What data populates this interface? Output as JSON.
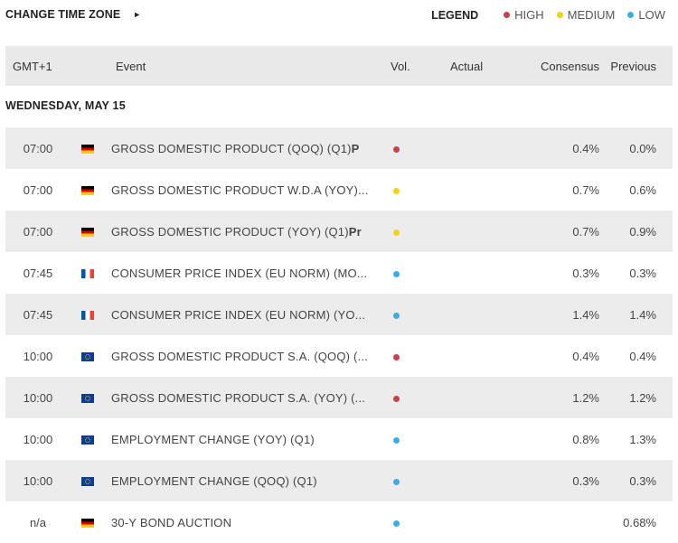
{
  "topbar": {
    "change_tz_label": "CHANGE TIME ZONE",
    "arrow": "►",
    "legend_title": "LEGEND",
    "legend": [
      {
        "label": "HIGH",
        "color": "#c9404c"
      },
      {
        "label": "MEDIUM",
        "color": "#f2d21b"
      },
      {
        "label": "LOW",
        "color": "#3aaee3"
      }
    ]
  },
  "table": {
    "headers": {
      "time": "GMT+1",
      "event": "Event",
      "vol": "Vol.",
      "actual": "Actual",
      "consensus": "Consensus",
      "previous": "Previous"
    },
    "day_label": "WEDNESDAY, MAY 15",
    "rows": [
      {
        "time": "07:00",
        "flag": "de",
        "event": "GROSS DOMESTIC PRODUCT (QOQ) (Q1)",
        "event_bold": "P",
        "vol": "#c9404c",
        "actual": "",
        "consensus": "0.4%",
        "previous": "0.0%"
      },
      {
        "time": "07:00",
        "flag": "de",
        "event": "GROSS DOMESTIC PRODUCT W.D.A (YOY)...",
        "event_bold": "",
        "vol": "#f2d21b",
        "actual": "",
        "consensus": "0.7%",
        "previous": "0.6%"
      },
      {
        "time": "07:00",
        "flag": "de",
        "event": "GROSS DOMESTIC PRODUCT (YOY) (Q1)",
        "event_bold": "Pr",
        "vol": "#f2d21b",
        "actual": "",
        "consensus": "0.7%",
        "previous": "0.9%"
      },
      {
        "time": "07:45",
        "flag": "fr",
        "event": "CONSUMER PRICE INDEX (EU NORM) (MO...",
        "event_bold": "",
        "vol": "#3aaee3",
        "actual": "",
        "consensus": "0.3%",
        "previous": "0.3%"
      },
      {
        "time": "07:45",
        "flag": "fr",
        "event": "CONSUMER PRICE INDEX (EU NORM) (YO...",
        "event_bold": "",
        "vol": "#3aaee3",
        "actual": "",
        "consensus": "1.4%",
        "previous": "1.4%"
      },
      {
        "time": "10:00",
        "flag": "eu",
        "event": "GROSS DOMESTIC PRODUCT S.A. (QOQ) (...",
        "event_bold": "",
        "vol": "#c9404c",
        "actual": "",
        "consensus": "0.4%",
        "previous": "0.4%"
      },
      {
        "time": "10:00",
        "flag": "eu",
        "event": "GROSS DOMESTIC PRODUCT S.A. (YOY) (...",
        "event_bold": "",
        "vol": "#c9404c",
        "actual": "",
        "consensus": "1.2%",
        "previous": "1.2%"
      },
      {
        "time": "10:00",
        "flag": "eu",
        "event": "EMPLOYMENT CHANGE (YOY) (Q1)",
        "event_bold": "",
        "vol": "#3aaee3",
        "actual": "",
        "consensus": "0.8%",
        "previous": "1.3%"
      },
      {
        "time": "10:00",
        "flag": "eu",
        "event": "EMPLOYMENT CHANGE (QOQ) (Q1)",
        "event_bold": "",
        "vol": "#3aaee3",
        "actual": "",
        "consensus": "0.3%",
        "previous": "0.3%"
      },
      {
        "time": "n/a",
        "flag": "de",
        "event": "30-Y BOND AUCTION",
        "event_bold": "",
        "vol": "#3aaee3",
        "actual": "",
        "consensus": "",
        "previous": "0.68%"
      }
    ]
  }
}
